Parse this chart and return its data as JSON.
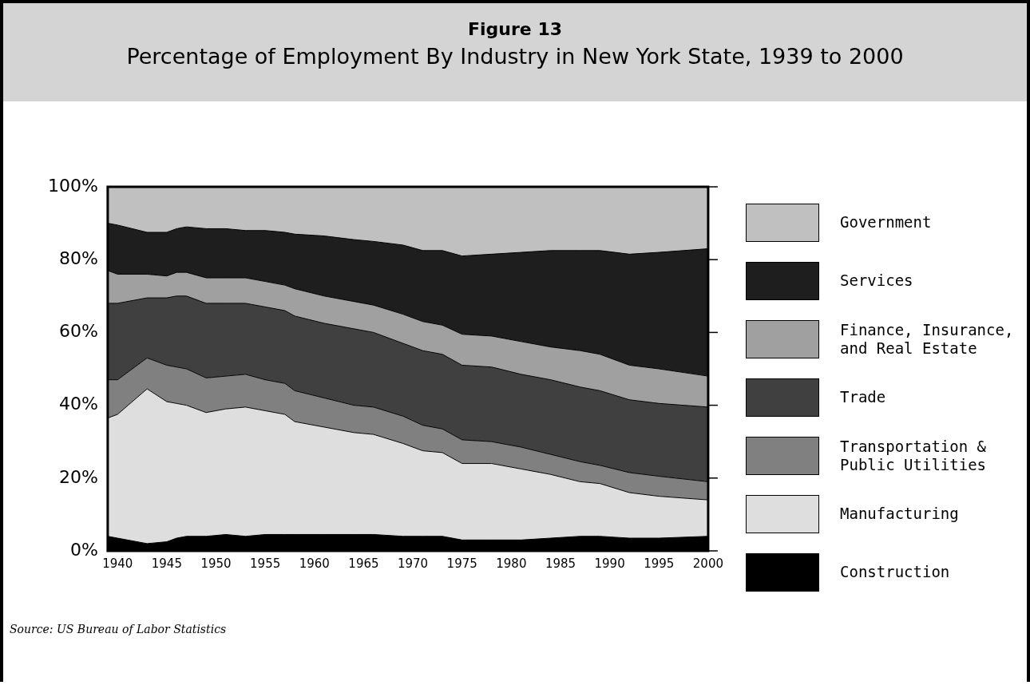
{
  "chart_data": {
    "type": "area",
    "stacked": true,
    "title": "Figure 13",
    "subtitle": "Percentage of Employment By Industry in New York State, 1939 to 2000",
    "x": [
      1939,
      1940,
      1943,
      1945,
      1946,
      1947,
      1949,
      1951,
      1953,
      1955,
      1957,
      1958,
      1961,
      1964,
      1966,
      1969,
      1971,
      1973,
      1975,
      1978,
      1981,
      1984,
      1987,
      1989,
      1992,
      1995,
      2000
    ],
    "xlim": [
      1939,
      2000
    ],
    "xticks": [
      1940,
      1945,
      1950,
      1955,
      1960,
      1965,
      1970,
      1975,
      1980,
      1985,
      1990,
      1995,
      2000
    ],
    "ylim": [
      0,
      100
    ],
    "yticks": [
      {
        "value": 0,
        "label": "0%"
      },
      {
        "value": 20,
        "label": "20%"
      },
      {
        "value": 40,
        "label": "40%"
      },
      {
        "value": 60,
        "label": "60%"
      },
      {
        "value": 80,
        "label": "80%"
      },
      {
        "value": 100,
        "label": "100%"
      }
    ],
    "legend": "right",
    "series": [
      {
        "name": "Construction",
        "color": "#000000",
        "values": [
          4,
          3.5,
          2,
          2.5,
          3.5,
          4,
          4,
          4.5,
          4,
          4.5,
          4.5,
          4.5,
          4.5,
          4.5,
          4.5,
          4,
          4,
          4,
          3,
          3,
          3,
          3.5,
          4,
          4,
          3.5,
          3.5,
          4
        ]
      },
      {
        "name": "Manufacturing",
        "color": "#dedede",
        "values": [
          32.5,
          34,
          42.5,
          38.5,
          37,
          36,
          34,
          34.5,
          35.5,
          34,
          33,
          31,
          29.5,
          28,
          27.5,
          25.5,
          23.5,
          23,
          21,
          21,
          19.5,
          17.5,
          15,
          14.5,
          12.5,
          11.5,
          10
        ]
      },
      {
        "name": "Transportation & Public Utilities",
        "color": "#808080",
        "values": [
          10.5,
          9.5,
          8.5,
          10,
          10,
          10,
          9.5,
          9,
          9,
          8.5,
          8.5,
          8.5,
          8,
          7.5,
          7.5,
          7.5,
          7,
          6.5,
          6.5,
          6,
          6,
          5.5,
          5.5,
          5,
          5.5,
          5.5,
          5
        ]
      },
      {
        "name": "Trade",
        "color": "#404040",
        "values": [
          21,
          21,
          16.5,
          18.5,
          19.5,
          20,
          20.5,
          20,
          19.5,
          20,
          20,
          20.5,
          20.5,
          21,
          20.5,
          20,
          20.5,
          20.5,
          20.5,
          20.5,
          20,
          20.5,
          20.5,
          20.5,
          20,
          20,
          20.5
        ]
      },
      {
        "name": "Finance, Insurance, and Real Estate",
        "color": "#a0a0a0",
        "values": [
          9,
          8,
          6.5,
          6,
          6.5,
          6.5,
          7,
          7,
          7,
          7,
          7,
          7.5,
          7.5,
          7.5,
          7.5,
          8,
          8,
          8,
          8.5,
          8.5,
          9,
          9,
          10,
          10,
          9.5,
          9.5,
          8.5
        ]
      },
      {
        "name": "Services",
        "color": "#1e1e1e",
        "values": [
          13,
          13.5,
          11.5,
          12,
          12,
          12.5,
          13.5,
          13.5,
          13,
          14,
          14.5,
          15,
          16.5,
          17,
          17.5,
          19,
          19.5,
          20.5,
          21.5,
          22.5,
          24.5,
          26.5,
          27.5,
          28.5,
          30.5,
          32,
          35
        ]
      },
      {
        "name": "Government",
        "color": "#c0c0c0",
        "values": [
          10,
          10.5,
          12.5,
          12.5,
          11.5,
          11,
          11.5,
          11.5,
          12,
          12,
          12.5,
          13,
          13.5,
          14.5,
          15,
          16,
          17.5,
          17.5,
          19,
          18.5,
          18,
          17.5,
          17.5,
          17.5,
          18.5,
          18,
          17
        ]
      }
    ],
    "annotations": [
      "Source: US Bureau of Labor Statistics"
    ]
  }
}
